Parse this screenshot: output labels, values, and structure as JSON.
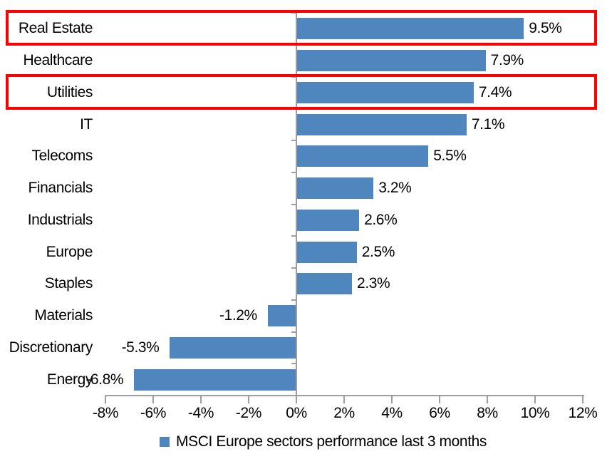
{
  "chart_data": {
    "type": "bar",
    "orientation": "horizontal",
    "title": "",
    "categories": [
      "Real Estate",
      "Healthcare",
      "Utilities",
      "IT",
      "Telecoms",
      "Financials",
      "Industrials",
      "Europe",
      "Staples",
      "Materials",
      "Discretionary",
      "Energy"
    ],
    "values": [
      9.5,
      7.9,
      7.4,
      7.1,
      5.5,
      3.2,
      2.6,
      2.5,
      2.3,
      -1.2,
      -5.3,
      -6.8
    ],
    "value_labels": [
      "9.5%",
      "7.9%",
      "7.4%",
      "7.1%",
      "5.5%",
      "3.2%",
      "2.6%",
      "2.5%",
      "2.3%",
      "-1.2%",
      "-5.3%",
      "-6.8%"
    ],
    "x_ticks": [
      "-8%",
      "-6%",
      "-4%",
      "-2%",
      "0%",
      "2%",
      "4%",
      "6%",
      "8%",
      "10%",
      "12%"
    ],
    "xlim": [
      -8,
      12
    ],
    "xlabel": "",
    "ylabel": "",
    "grid": false,
    "legend": "MSCI Europe sectors performance last 3 months",
    "legend_position": "bottom-center",
    "highlighted_categories": [
      "Real Estate",
      "Utilities"
    ],
    "colors": {
      "bar": "#4F86BD",
      "axis": "#9E9E9E",
      "highlight_box": "#FF0000",
      "text": "#000000",
      "background": "#FFFFFF"
    }
  }
}
